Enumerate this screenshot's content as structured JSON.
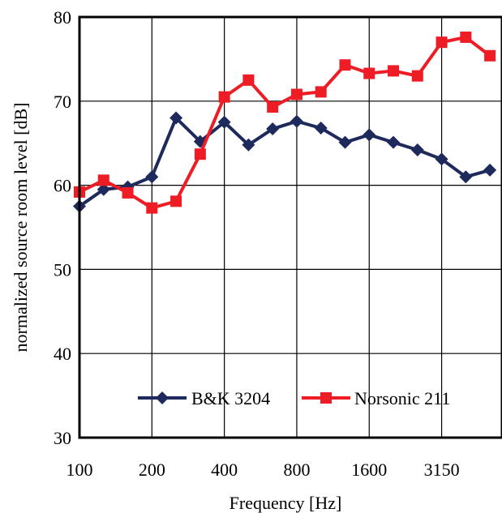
{
  "chart_data": {
    "type": "line",
    "title": "",
    "xlabel": "Frequency [Hz]",
    "ylabel": "normalized source room level [dB]",
    "categories": [
      "100",
      "125",
      "160",
      "200",
      "250",
      "315",
      "400",
      "500",
      "630",
      "800",
      "1000",
      "1250",
      "1600",
      "2000",
      "2500",
      "3150",
      "4000",
      "5000"
    ],
    "x_tick_labels": [
      "100",
      "200",
      "400",
      "800",
      "1600",
      "3150"
    ],
    "x_tick_categories": [
      "100",
      "200",
      "400",
      "800",
      "1600",
      "3150"
    ],
    "ylim": [
      30,
      80
    ],
    "yticks": [
      30,
      40,
      50,
      60,
      70,
      80
    ],
    "grid": true,
    "legend_position": "bottom-center",
    "series": [
      {
        "name": "B&K 3204",
        "color": "#1f2a5c",
        "marker": "diamond",
        "values": [
          57.5,
          59.5,
          59.8,
          61.0,
          68.0,
          65.2,
          67.5,
          64.8,
          66.7,
          67.6,
          66.8,
          65.1,
          66.0,
          65.1,
          64.2,
          63.1,
          61.0,
          61.8
        ]
      },
      {
        "name": "Norsonic 211",
        "color": "#ee1c24",
        "marker": "square",
        "values": [
          59.2,
          60.6,
          59.1,
          57.3,
          58.1,
          63.7,
          70.5,
          72.5,
          69.3,
          70.8,
          71.1,
          74.3,
          73.3,
          73.6,
          73.0,
          77.0,
          77.6,
          75.4
        ]
      }
    ]
  }
}
